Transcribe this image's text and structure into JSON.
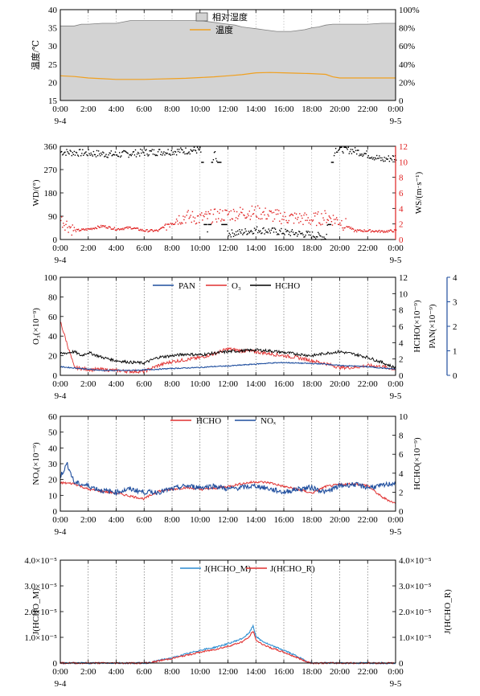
{
  "chart_data": [
    {
      "type": "area",
      "id": "p1",
      "ylabel": "温度/℃",
      "y2label": "",
      "ylim": [
        15,
        40
      ],
      "yticks": [
        "15",
        "20",
        "25",
        "30",
        "35",
        "40"
      ],
      "y2lim": [
        0,
        100
      ],
      "y2ticks": [
        "0",
        "20%",
        "40%",
        "60%",
        "80%",
        "100%"
      ],
      "xticks": [
        "0:00",
        "2:00",
        "4:00",
        "6:00",
        "8:00",
        "10:00",
        "12:00",
        "14:00",
        "16:00",
        "18:00",
        "20:00",
        "22:00",
        "0:00"
      ],
      "date_start": "9-4",
      "date_end": "9-5",
      "legend": [
        "相对湿度",
        "温度"
      ],
      "colors": {
        "humidity_fill": "#d3d3d3",
        "humidity_line": "#7f7f7f",
        "temperature": "#f0a020"
      },
      "series": [
        {
          "name": "相对湿度",
          "axis": "right",
          "x": [
            0,
            1,
            1.5,
            2,
            3,
            4,
            5,
            6,
            7,
            8,
            9,
            10,
            10.5,
            11,
            11.5,
            12,
            12.5,
            13,
            13.5,
            14,
            14.5,
            15,
            15.5,
            16,
            16.5,
            17,
            17.5,
            18,
            18.5,
            19,
            19.5,
            20,
            21,
            22,
            23,
            24
          ],
          "y": [
            82,
            82,
            84,
            84,
            85,
            85,
            88,
            88,
            88,
            88,
            88,
            88,
            87,
            86,
            85,
            84,
            83,
            81,
            80,
            79,
            78,
            77,
            76,
            76,
            76,
            77,
            78,
            80,
            81,
            83,
            84,
            84,
            84,
            84,
            85,
            85
          ]
        },
        {
          "name": "温度",
          "axis": "left",
          "x": [
            0,
            1,
            2,
            3,
            4,
            5,
            6,
            7,
            8,
            9,
            10,
            11,
            12,
            13,
            14,
            15,
            16,
            17,
            18,
            19,
            19.5,
            20,
            21,
            22,
            23,
            24
          ],
          "y": [
            21.8,
            21.6,
            21.2,
            21.0,
            20.8,
            20.8,
            20.8,
            20.9,
            21.0,
            21.1,
            21.3,
            21.5,
            21.8,
            22.1,
            22.6,
            22.7,
            22.6,
            22.5,
            22.4,
            22.2,
            21.5,
            21.2,
            21.2,
            21.2,
            21.2,
            21.2
          ]
        }
      ]
    },
    {
      "type": "scatter",
      "id": "p2",
      "ylabel": "WD/(°)",
      "y2label": "WS/(m·s⁻¹)",
      "ylim": [
        0,
        360
      ],
      "yticks": [
        "0",
        "90",
        "180",
        "270",
        "360"
      ],
      "y2lim": [
        0,
        12
      ],
      "y2ticks": [
        "0",
        "2",
        "4",
        "6",
        "8",
        "10",
        "12"
      ],
      "xticks": [
        "0:00",
        "2:00",
        "4:00",
        "6:00",
        "8:00",
        "10:00",
        "12:00",
        "14:00",
        "16:00",
        "18:00",
        "20:00",
        "22:00",
        "0:00"
      ],
      "date_start": "9-4",
      "date_end": "9-5",
      "colors": {
        "WD": "#000000",
        "WS": "#e02020"
      },
      "series": [
        {
          "name": "WD",
          "axis": "left",
          "x": [
            0,
            2,
            4,
            6,
            8,
            9,
            10,
            10.5,
            11,
            12,
            13,
            14,
            15,
            16,
            17,
            18,
            19,
            19.6,
            20,
            21,
            22,
            23,
            24
          ],
          "y": [
            340,
            335,
            330,
            338,
            342,
            345,
            348,
            20,
            350,
            25,
            30,
            40,
            35,
            30,
            25,
            20,
            10,
            350,
            352,
            345,
            330,
            310,
            320
          ]
        },
        {
          "name": "WS",
          "axis": "right",
          "x": [
            0,
            1,
            2,
            3,
            4,
            5,
            6,
            7,
            8,
            9,
            10,
            11,
            12,
            13,
            14,
            15,
            16,
            17,
            18,
            19,
            20,
            21,
            22,
            23,
            24
          ],
          "y": [
            2.6,
            1.2,
            1.4,
            1.8,
            1.4,
            1.6,
            1.2,
            1.2,
            2.6,
            3.0,
            2.8,
            3.1,
            3.3,
            3.5,
            3.6,
            3.2,
            2.9,
            2.8,
            2.6,
            3.0,
            2.4,
            1.2,
            1.2,
            1.1,
            1.2
          ]
        }
      ]
    },
    {
      "type": "line",
      "id": "p3",
      "ylabel": "O₃(×10⁻⁹)",
      "y2label": "HCHO(×10⁻⁹)",
      "y3label": "PAN(×10⁻⁹)",
      "ylim": [
        0,
        100
      ],
      "yticks": [
        "0",
        "20",
        "40",
        "60",
        "80",
        "100"
      ],
      "y2lim": [
        0,
        12
      ],
      "y2ticks": [
        "0",
        "2",
        "4",
        "6",
        "8",
        "10",
        "12"
      ],
      "y3lim": [
        0,
        4
      ],
      "y3ticks": [
        "0",
        "1",
        "2",
        "3",
        "4"
      ],
      "xticks": [
        "0:00",
        "2:00",
        "4:00",
        "6:00",
        "8:00",
        "10:00",
        "12:00",
        "14:00",
        "16:00",
        "18:00",
        "20:00",
        "22:00",
        "0:00"
      ],
      "date_start": "9-4",
      "date_end": "9-5",
      "legend": [
        "PAN",
        "O₃",
        "HCHO"
      ],
      "colors": {
        "PAN": "#1f4e9e",
        "O3": "#e03030",
        "HCHO": "#000000",
        "third_axis": "#1f4e9e"
      },
      "series": [
        {
          "name": "PAN",
          "axis": "third",
          "x": [
            0,
            1,
            2,
            3,
            4,
            5,
            6,
            7,
            8,
            9,
            10,
            11,
            12,
            13,
            14,
            15,
            16,
            17,
            18,
            19,
            20,
            21,
            22,
            23,
            24
          ],
          "y": [
            0.35,
            0.3,
            0.25,
            0.2,
            0.2,
            0.2,
            0.22,
            0.25,
            0.28,
            0.3,
            0.32,
            0.36,
            0.38,
            0.42,
            0.46,
            0.5,
            0.52,
            0.5,
            0.48,
            0.46,
            0.4,
            0.38,
            0.35,
            0.3,
            0.25
          ]
        },
        {
          "name": "O₃",
          "axis": "left",
          "x": [
            0,
            1,
            2,
            3,
            4,
            5,
            6,
            7,
            8,
            9,
            10,
            11,
            12,
            13,
            14,
            15,
            16,
            17,
            18,
            19,
            20,
            21,
            22,
            23,
            24
          ],
          "y": [
            55,
            8,
            6,
            6,
            5,
            4,
            4,
            10,
            14,
            16,
            18,
            22,
            27,
            25,
            24,
            22,
            20,
            18,
            15,
            12,
            8,
            8,
            10,
            9,
            6
          ]
        },
        {
          "name": "HCHO",
          "axis": "right",
          "x": [
            0,
            1,
            1.5,
            2,
            3,
            4,
            5,
            6,
            7,
            8,
            9,
            10,
            11,
            12,
            13,
            14,
            15,
            16,
            17,
            18,
            19,
            20,
            21,
            22,
            23,
            24
          ],
          "y": [
            2.6,
            2.9,
            2.4,
            2.8,
            2.2,
            1.8,
            1.6,
            1.5,
            2.2,
            2.4,
            2.6,
            2.5,
            2.7,
            2.9,
            3.0,
            3.1,
            3.0,
            2.8,
            2.6,
            2.4,
            2.7,
            2.9,
            2.6,
            2.2,
            1.6,
            0.9
          ]
        }
      ]
    },
    {
      "type": "line",
      "id": "p4",
      "ylabel": "NOₓ(×10⁻⁹)",
      "y2label": "HCHO(×10⁻⁹)",
      "ylim": [
        0,
        60
      ],
      "yticks": [
        "0",
        "10",
        "20",
        "30",
        "40",
        "50",
        "60"
      ],
      "y2lim": [
        0,
        10
      ],
      "y2ticks": [
        "0",
        "2",
        "4",
        "6",
        "8",
        "10"
      ],
      "xticks": [
        "0:00",
        "2:00",
        "4:00",
        "6:00",
        "8:00",
        "10:00",
        "12:00",
        "14:00",
        "16:00",
        "18:00",
        "20:00",
        "22:00",
        "0:00"
      ],
      "date_start": "9-4",
      "date_end": "9-5",
      "legend": [
        "HCHO",
        "NOₓ"
      ],
      "colors": {
        "HCHO": "#e03030",
        "NOx": "#1f4e9e"
      },
      "series": [
        {
          "name": "HCHO",
          "axis": "right",
          "x": [
            0,
            1,
            2,
            3,
            4,
            5,
            6,
            7,
            8,
            9,
            10,
            11,
            12,
            13,
            14,
            15,
            16,
            17,
            18,
            19,
            20,
            21,
            22,
            23,
            24
          ],
          "y": [
            3.0,
            2.9,
            2.3,
            2.1,
            1.9,
            1.6,
            1.3,
            2.1,
            2.3,
            2.5,
            2.3,
            2.4,
            2.6,
            2.9,
            3.1,
            3.0,
            2.6,
            2.3,
            1.9,
            2.6,
            2.8,
            2.9,
            2.7,
            1.5,
            0.8
          ]
        },
        {
          "name": "NOₓ",
          "axis": "left",
          "x": [
            0,
            0.5,
            1,
            1.5,
            2,
            3,
            4,
            5,
            6,
            7,
            8,
            9,
            10,
            11,
            12,
            13,
            14,
            15,
            16,
            17,
            18,
            19,
            20,
            21,
            22,
            23,
            24
          ],
          "y": [
            22,
            30,
            18,
            17,
            16,
            13,
            12,
            14,
            12,
            12,
            14,
            16,
            15,
            16,
            14,
            15,
            16,
            14,
            12,
            14,
            15,
            12,
            16,
            17,
            15,
            16,
            18
          ]
        }
      ]
    },
    {
      "type": "line",
      "id": "p5",
      "ylabel": "J(HCHO_M)",
      "y2label": "J(HCHO_R)",
      "ylim": [
        0,
        4e-05
      ],
      "yticks": [
        "0",
        "1.0×10⁻⁵",
        "2.0×10⁻⁵",
        "3.0×10⁻⁵",
        "4.0×10⁻⁵"
      ],
      "y2lim": [
        0,
        4e-05
      ],
      "y2ticks": [
        "0",
        "1.0×10⁻⁵",
        "2.0×10⁻⁵",
        "3.0×10⁻⁵",
        "4.0×10⁻⁵"
      ],
      "xticks": [
        "0:00",
        "2:00",
        "4:00",
        "6:00",
        "8:00",
        "10:00",
        "12:00",
        "14:00",
        "16:00",
        "18:00",
        "20:00",
        "22:00",
        "0:00"
      ],
      "date_start": "9-4",
      "date_end": "9-5",
      "legend": [
        "J(HCHO_M)",
        "J(HCHO_R)"
      ],
      "colors": {
        "J_M": "#2b8cd0",
        "J_R": "#e03030"
      },
      "series": [
        {
          "name": "J(HCHO_M)",
          "axis": "left",
          "x": [
            0,
            6,
            6.5,
            7,
            8,
            9,
            10,
            11,
            12,
            13,
            13.5,
            13.8,
            14,
            14.3,
            15,
            16,
            17,
            17.5,
            18,
            24
          ],
          "y": [
            0,
            0,
            2e-07,
            1e-06,
            2e-06,
            3.5e-06,
            5e-06,
            6e-06,
            7.5e-06,
            9.5e-06,
            1.15e-05,
            1.45e-05,
            1.05e-05,
            9e-06,
            7e-06,
            5e-06,
            2.5e-06,
            1e-06,
            0,
            0
          ]
        },
        {
          "name": "J(HCHO_R)",
          "axis": "right",
          "x": [
            0,
            6,
            6.5,
            7,
            8,
            9,
            10,
            11,
            12,
            13,
            13.5,
            13.8,
            14,
            14.3,
            15,
            16,
            17,
            17.5,
            18,
            24
          ],
          "y": [
            0,
            0,
            2e-07,
            8e-07,
            1.8e-06,
            3e-06,
            4.2e-06,
            5.2e-06,
            6.5e-06,
            8.2e-06,
            1e-05,
            1.25e-05,
            9e-06,
            7.8e-06,
            6e-06,
            4.2e-06,
            2e-06,
            8e-07,
            0,
            0
          ]
        }
      ]
    }
  ]
}
